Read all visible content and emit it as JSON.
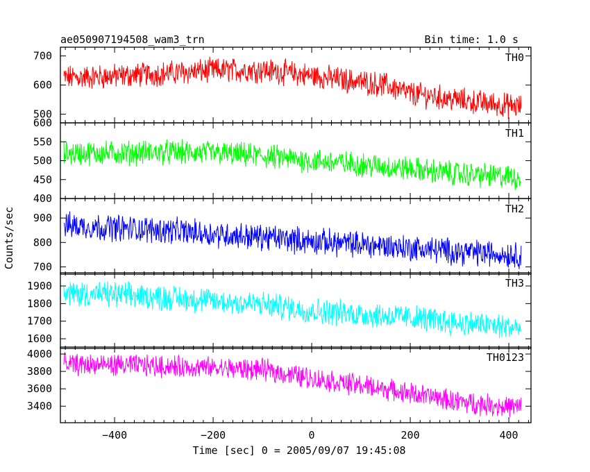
{
  "chart_data": {
    "type": "line",
    "title_left": "ae050907194508_wam3_trn",
    "title_right": "Bin time: 1.0 s",
    "xlabel": "Time [sec] 0 = 2005/09/07 19:45:08",
    "ylabel": "Counts/sec",
    "xlim": [
      -510,
      445
    ],
    "x_ticks": [
      -400,
      -200,
      0,
      200,
      400
    ],
    "x_tick_labels": [
      "−400",
      "−200",
      "0",
      "200",
      "400"
    ],
    "x_range": [
      -503,
      425
    ],
    "bin_time": 1.0,
    "grid": false,
    "panels": [
      {
        "name": "TH0",
        "color": "#ff0000",
        "ylim": [
          470,
          730
        ],
        "ticks": [
          500,
          600,
          700
        ],
        "tick_labels": [
          "500",
          "600",
          "700"
        ],
        "trend_x": [
          -503,
          -400,
          -300,
          -200,
          -100,
          0,
          100,
          150,
          200,
          250,
          300,
          350,
          425
        ],
        "trend_y": [
          625,
          630,
          640,
          650,
          652,
          632,
          610,
          600,
          570,
          560,
          548,
          538,
          525
        ],
        "noise": 55
      },
      {
        "name": "TH1",
        "color": "#00ff00",
        "ylim": [
          400,
          600
        ],
        "ticks": [
          400,
          450,
          500,
          550,
          600
        ],
        "tick_labels": [
          "400",
          "450",
          "500",
          "550",
          "600"
        ],
        "trend_x": [
          -503,
          -400,
          -300,
          -200,
          -100,
          0,
          100,
          200,
          300,
          425
        ],
        "trend_y": [
          520,
          520,
          522,
          520,
          512,
          500,
          490,
          478,
          465,
          455
        ],
        "noise": 42
      },
      {
        "name": "TH2",
        "color": "#0000ff",
        "ylim": [
          670,
          980
        ],
        "ticks": [
          700,
          800,
          900
        ],
        "tick_labels": [
          "700",
          "800",
          "900"
        ],
        "trend_x": [
          -503,
          -400,
          -300,
          -200,
          -100,
          0,
          100,
          200,
          300,
          425
        ],
        "trend_y": [
          870,
          860,
          850,
          835,
          822,
          805,
          792,
          778,
          762,
          748
        ],
        "noise": 70
      },
      {
        "name": "TH3",
        "color": "#00ffff",
        "ylim": [
          1545,
          1975
        ],
        "ticks": [
          1600,
          1700,
          1800,
          1900
        ],
        "tick_labels": [
          "1600",
          "1700",
          "1800",
          "1900"
        ],
        "trend_x": [
          -503,
          -400,
          -300,
          -200,
          -100,
          0,
          100,
          200,
          300,
          425
        ],
        "trend_y": [
          1860,
          1850,
          1835,
          1815,
          1795,
          1760,
          1740,
          1720,
          1690,
          1660
        ],
        "noise": 95
      },
      {
        "name": "TH0123",
        "color": "#ff00ff",
        "ylim": [
          3210,
          4080
        ],
        "ticks": [
          3400,
          3600,
          3800,
          4000
        ],
        "tick_labels": [
          "3400",
          "3600",
          "3800",
          "4000"
        ],
        "trend_x": [
          -503,
          -400,
          -300,
          -200,
          -100,
          0,
          100,
          200,
          300,
          425
        ],
        "trend_y": [
          3880,
          3875,
          3860,
          3840,
          3820,
          3720,
          3640,
          3550,
          3450,
          3380
        ],
        "noise": 160
      }
    ]
  }
}
